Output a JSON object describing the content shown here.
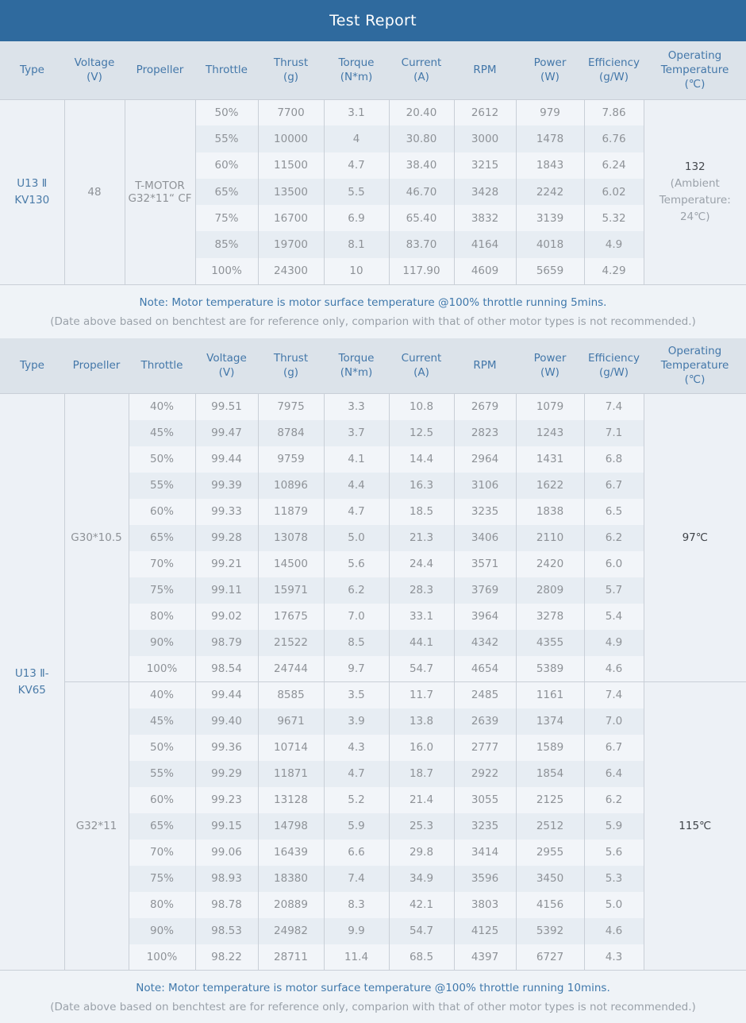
{
  "title": "Test Report",
  "colors": {
    "title_bar": "#2f6a9e",
    "header_bg": "#dce3ea",
    "header_text": "#4377a9",
    "row_light": "#f2f5f9",
    "row_dark": "#e7edf3",
    "cell_text": "#8e9297",
    "note_blue": "#3f78ab",
    "note_gray": "#9aa1a9"
  },
  "table1": {
    "columns": [
      "Type",
      "Voltage\n(V)",
      "Propeller",
      "Throttle",
      "Thrust\n(g)",
      "Torque\n(N*m)",
      "Current\n(A)",
      "RPM",
      "Power\n(W)",
      "Efficiency\n(g/W)",
      "Operating\nTemperature\n(℃)"
    ],
    "type": "U13 Ⅱ\nKV130",
    "voltage": "48",
    "propeller": "T-MOTOR\nG32*11“ CF",
    "rows": [
      [
        "50%",
        "7700",
        "3.1",
        "20.40",
        "2612",
        "979",
        "7.86"
      ],
      [
        "55%",
        "10000",
        "4",
        "30.80",
        "3000",
        "1478",
        "6.76"
      ],
      [
        "60%",
        "11500",
        "4.7",
        "38.40",
        "3215",
        "1843",
        "6.24"
      ],
      [
        "65%",
        "13500",
        "5.5",
        "46.70",
        "3428",
        "2242",
        "6.02"
      ],
      [
        "75%",
        "16700",
        "6.9",
        "65.40",
        "3832",
        "3139",
        "5.32"
      ],
      [
        "85%",
        "19700",
        "8.1",
        "83.70",
        "4164",
        "4018",
        "4.9"
      ],
      [
        "100%",
        "24300",
        "10",
        "117.90",
        "4609",
        "5659",
        "4.29"
      ]
    ],
    "operating_temperature": {
      "value": "132",
      "detail": "(Ambient\nTemperature:\n24℃)"
    }
  },
  "note1": {
    "line1": "Note: Motor temperature is motor surface temperature @100% throttle running 5mins.",
    "line2": "(Date above based on benchtest are for reference only, comparion with that of other motor types is not recommended.)"
  },
  "table2": {
    "columns": [
      "Type",
      "Propeller",
      "Throttle",
      "Voltage\n(V)",
      "Thrust\n(g)",
      "Torque\n(N*m)",
      "Current\n(A)",
      "RPM",
      "Power\n(W)",
      "Efficiency\n(g/W)",
      "Operating\nTemperature\n(℃)"
    ],
    "type": "U13 Ⅱ-\nKV65",
    "sections": [
      {
        "propeller": "G30*10.5",
        "operating_temperature": "97℃",
        "rows": [
          [
            "40%",
            "99.51",
            "7975",
            "3.3",
            "10.8",
            "2679",
            "1079",
            "7.4"
          ],
          [
            "45%",
            "99.47",
            "8784",
            "3.7",
            "12.5",
            "2823",
            "1243",
            "7.1"
          ],
          [
            "50%",
            "99.44",
            "9759",
            "4.1",
            "14.4",
            "2964",
            "1431",
            "6.8"
          ],
          [
            "55%",
            "99.39",
            "10896",
            "4.4",
            "16.3",
            "3106",
            "1622",
            "6.7"
          ],
          [
            "60%",
            "99.33",
            "11879",
            "4.7",
            "18.5",
            "3235",
            "1838",
            "6.5"
          ],
          [
            "65%",
            "99.28",
            "13078",
            "5.0",
            "21.3",
            "3406",
            "2110",
            "6.2"
          ],
          [
            "70%",
            "99.21",
            "14500",
            "5.6",
            "24.4",
            "3571",
            "2420",
            "6.0"
          ],
          [
            "75%",
            "99.11",
            "15971",
            "6.2",
            "28.3",
            "3769",
            "2809",
            "5.7"
          ],
          [
            "80%",
            "99.02",
            "17675",
            "7.0",
            "33.1",
            "3964",
            "3278",
            "5.4"
          ],
          [
            "90%",
            "98.79",
            "21522",
            "8.5",
            "44.1",
            "4342",
            "4355",
            "4.9"
          ],
          [
            "100%",
            "98.54",
            "24744",
            "9.7",
            "54.7",
            "4654",
            "5389",
            "4.6"
          ]
        ]
      },
      {
        "propeller": "G32*11",
        "operating_temperature": "115℃",
        "rows": [
          [
            "40%",
            "99.44",
            "8585",
            "3.5",
            "11.7",
            "2485",
            "1161",
            "7.4"
          ],
          [
            "45%",
            "99.40",
            "9671",
            "3.9",
            "13.8",
            "2639",
            "1374",
            "7.0"
          ],
          [
            "50%",
            "99.36",
            "10714",
            "4.3",
            "16.0",
            "2777",
            "1589",
            "6.7"
          ],
          [
            "55%",
            "99.29",
            "11871",
            "4.7",
            "18.7",
            "2922",
            "1854",
            "6.4"
          ],
          [
            "60%",
            "99.23",
            "13128",
            "5.2",
            "21.4",
            "3055",
            "2125",
            "6.2"
          ],
          [
            "65%",
            "99.15",
            "14798",
            "5.9",
            "25.3",
            "3235",
            "2512",
            "5.9"
          ],
          [
            "70%",
            "99.06",
            "16439",
            "6.6",
            "29.8",
            "3414",
            "2955",
            "5.6"
          ],
          [
            "75%",
            "98.93",
            "18380",
            "7.4",
            "34.9",
            "3596",
            "3450",
            "5.3"
          ],
          [
            "80%",
            "98.78",
            "20889",
            "8.3",
            "42.1",
            "3803",
            "4156",
            "5.0"
          ],
          [
            "90%",
            "98.53",
            "24982",
            "9.9",
            "54.7",
            "4125",
            "5392",
            "4.6"
          ],
          [
            "100%",
            "98.22",
            "28711",
            "11.4",
            "68.5",
            "4397",
            "6727",
            "4.3"
          ]
        ]
      }
    ]
  },
  "note2": {
    "line1": "Note: Motor temperature is motor surface temperature @100% throttle running 10mins.",
    "line2": "(Date above based on benchtest are for reference only, comparion with that of other motor types is not recommended.)"
  }
}
